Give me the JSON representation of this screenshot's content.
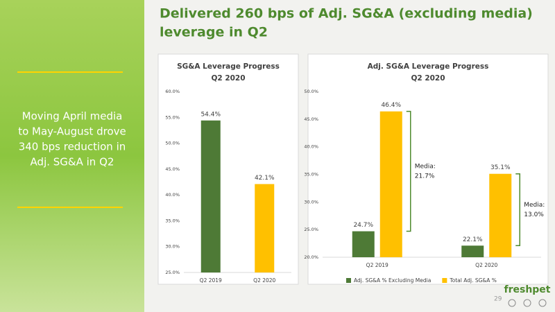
{
  "title": [
    "Delivered 260 bps of Adj. SG&A (excluding media)",
    "leverage in Q2"
  ],
  "sidebar_text": [
    "Moving April media",
    "to May-August drove",
    "340 bps reduction in",
    "Adj. SG&A in Q2"
  ],
  "page_number": "29",
  "logo": "freshpet",
  "chart_data": [
    {
      "type": "bar",
      "title": [
        "SG&A Leverage Progress",
        "Q2 2020"
      ],
      "categories": [
        "Q2 2019",
        "Q2 2020"
      ],
      "values": [
        54.4,
        42.1
      ],
      "value_labels": [
        "54.4%",
        "42.1%"
      ],
      "colors": [
        "#4e7a36",
        "#ffc000"
      ],
      "ylim": [
        25,
        60
      ],
      "yticks": [
        {
          "value": 25,
          "label": "25.0%"
        },
        {
          "value": 30,
          "label": "30.0%"
        },
        {
          "value": 35,
          "label": "35.0%"
        },
        {
          "value": 40,
          "label": "40.0%"
        },
        {
          "value": 45,
          "label": "45.0%"
        },
        {
          "value": 50,
          "label": "50.0%"
        },
        {
          "value": 55,
          "label": "55.0%"
        },
        {
          "value": 60,
          "label": "60.0%"
        }
      ],
      "grid": false
    },
    {
      "type": "grouped-bar",
      "title": [
        "Adj. SG&A Leverage Progress",
        "Q2 2020"
      ],
      "categories": [
        "Q2 2019",
        "Q2 2020"
      ],
      "series": [
        {
          "name": "Adj. SG&A % Excluding Media",
          "color": "#4e7a36",
          "values": [
            24.7,
            22.1
          ],
          "value_labels": [
            "24.7%",
            "22.1%"
          ]
        },
        {
          "name": "Total Adj. SG&A %",
          "color": "#ffc000",
          "values": [
            46.4,
            35.1
          ],
          "value_labels": [
            "46.4%",
            "35.1%"
          ]
        }
      ],
      "annotations": [
        [
          "Media:",
          "21.7%"
        ],
        [
          "Media:",
          "13.0%"
        ]
      ],
      "ylim": [
        20,
        50
      ],
      "yticks": [
        {
          "value": 20,
          "label": "20.0%"
        },
        {
          "value": 25,
          "label": "25.0%"
        },
        {
          "value": 30,
          "label": "30.0%"
        },
        {
          "value": 35,
          "label": "35.0%"
        },
        {
          "value": 40,
          "label": "40.0%"
        },
        {
          "value": 45,
          "label": "45.0%"
        },
        {
          "value": 50,
          "label": "50.0%"
        }
      ],
      "grid": false,
      "legend": "bottom"
    }
  ]
}
